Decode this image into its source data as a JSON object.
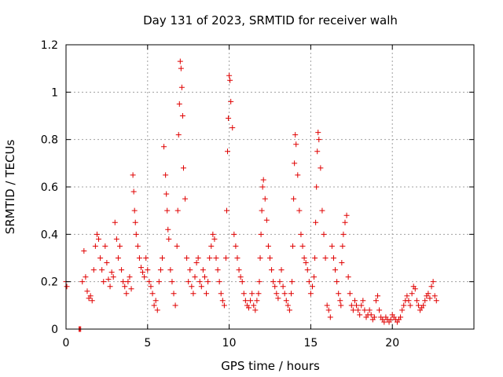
{
  "chart_data": {
    "type": "scatter",
    "title": "Day 131 of 2023, SRMTID for receiver walh",
    "xlabel": "GPS time / hours",
    "ylabel": "SRMTID / TECUs",
    "xlim": [
      0,
      25
    ],
    "ylim": [
      0,
      1.2
    ],
    "xticks": [
      "0",
      "5",
      "10",
      "15",
      "20"
    ],
    "xtick_values": [
      0,
      5,
      10,
      15,
      20
    ],
    "yticks": [
      "0",
      "0.2",
      "0.4",
      "0.6",
      "0.8",
      "1",
      "1.2"
    ],
    "ytick_values": [
      0,
      0.2,
      0.4,
      0.6,
      0.8,
      1.0,
      1.2
    ],
    "grid": true,
    "marker": "+",
    "color": "#e00000",
    "series": [
      {
        "name": "SRMTID",
        "x": [
          0.0,
          0.05,
          0.8,
          0.85,
          0.9,
          1.0,
          1.1,
          1.2,
          1.3,
          1.4,
          1.5,
          1.6,
          1.7,
          1.8,
          1.9,
          2.0,
          2.1,
          2.2,
          2.3,
          2.4,
          2.5,
          2.6,
          2.7,
          2.8,
          2.9,
          3.0,
          3.1,
          3.2,
          3.3,
          3.4,
          3.5,
          3.6,
          3.7,
          3.8,
          3.9,
          4.0,
          4.1,
          4.15,
          4.2,
          4.25,
          4.3,
          4.4,
          4.5,
          4.6,
          4.7,
          4.8,
          4.9,
          5.0,
          5.1,
          5.2,
          5.3,
          5.4,
          5.5,
          5.6,
          5.7,
          5.8,
          5.9,
          6.0,
          6.1,
          6.15,
          6.2,
          6.25,
          6.3,
          6.4,
          6.5,
          6.6,
          6.7,
          6.8,
          6.85,
          6.9,
          6.95,
          7.0,
          7.05,
          7.1,
          7.15,
          7.2,
          7.3,
          7.4,
          7.5,
          7.6,
          7.7,
          7.8,
          7.9,
          8.0,
          8.1,
          8.2,
          8.3,
          8.4,
          8.5,
          8.6,
          8.7,
          8.8,
          8.9,
          9.0,
          9.1,
          9.2,
          9.3,
          9.4,
          9.5,
          9.6,
          9.7,
          9.8,
          9.85,
          9.9,
          9.95,
          10.0,
          10.05,
          10.1,
          10.2,
          10.3,
          10.4,
          10.5,
          10.6,
          10.7,
          10.8,
          10.9,
          11.0,
          11.1,
          11.2,
          11.3,
          11.4,
          11.5,
          11.6,
          11.7,
          11.8,
          11.85,
          11.9,
          11.95,
          12.0,
          12.05,
          12.1,
          12.2,
          12.3,
          12.4,
          12.5,
          12.6,
          12.7,
          12.8,
          12.9,
          13.0,
          13.1,
          13.2,
          13.3,
          13.4,
          13.5,
          13.6,
          13.7,
          13.8,
          13.85,
          13.9,
          13.95,
          14.0,
          14.05,
          14.1,
          14.2,
          14.3,
          14.4,
          14.5,
          14.6,
          14.7,
          14.8,
          14.9,
          15.0,
          15.1,
          15.2,
          15.25,
          15.3,
          15.35,
          15.4,
          15.45,
          15.5,
          15.6,
          15.7,
          15.8,
          15.9,
          16.0,
          16.1,
          16.2,
          16.3,
          16.4,
          16.5,
          16.6,
          16.7,
          16.8,
          16.85,
          16.9,
          16.95,
          17.0,
          17.1,
          17.2,
          17.3,
          17.4,
          17.5,
          17.6,
          17.7,
          17.8,
          17.9,
          18.0,
          18.1,
          18.2,
          18.3,
          18.4,
          18.5,
          18.6,
          18.7,
          18.8,
          18.9,
          19.0,
          19.1,
          19.2,
          19.3,
          19.4,
          19.5,
          19.6,
          19.7,
          19.8,
          19.9,
          20.0,
          20.1,
          20.2,
          20.3,
          20.4,
          20.5,
          20.6,
          20.7,
          20.8,
          20.9,
          21.0,
          21.1,
          21.2,
          21.3,
          21.4,
          21.5,
          21.6,
          21.7,
          21.8,
          21.9,
          22.0,
          22.1,
          22.2,
          22.3,
          22.4,
          22.5,
          22.6,
          22.7
        ],
        "y": [
          0.2,
          0.18,
          0.0,
          0.0,
          0.0,
          0.2,
          0.33,
          0.22,
          0.16,
          0.13,
          0.14,
          0.12,
          0.25,
          0.35,
          0.4,
          0.38,
          0.3,
          0.25,
          0.2,
          0.35,
          0.28,
          0.21,
          0.18,
          0.24,
          0.22,
          0.45,
          0.38,
          0.3,
          0.35,
          0.25,
          0.2,
          0.18,
          0.15,
          0.2,
          0.22,
          0.17,
          0.65,
          0.58,
          0.5,
          0.45,
          0.4,
          0.35,
          0.3,
          0.26,
          0.24,
          0.22,
          0.3,
          0.25,
          0.2,
          0.18,
          0.15,
          0.1,
          0.12,
          0.08,
          0.2,
          0.25,
          0.3,
          0.77,
          0.65,
          0.57,
          0.5,
          0.42,
          0.38,
          0.25,
          0.2,
          0.15,
          0.1,
          0.35,
          0.5,
          0.82,
          0.95,
          1.13,
          1.1,
          1.02,
          0.9,
          0.68,
          0.55,
          0.3,
          0.2,
          0.25,
          0.18,
          0.15,
          0.22,
          0.28,
          0.3,
          0.2,
          0.18,
          0.25,
          0.22,
          0.15,
          0.2,
          0.3,
          0.35,
          0.4,
          0.38,
          0.3,
          0.25,
          0.2,
          0.15,
          0.12,
          0.1,
          0.3,
          0.5,
          0.75,
          0.89,
          1.07,
          1.05,
          0.96,
          0.85,
          0.4,
          0.35,
          0.3,
          0.25,
          0.22,
          0.2,
          0.15,
          0.12,
          0.1,
          0.09,
          0.12,
          0.15,
          0.1,
          0.08,
          0.12,
          0.15,
          0.2,
          0.3,
          0.4,
          0.5,
          0.6,
          0.63,
          0.55,
          0.46,
          0.35,
          0.3,
          0.25,
          0.2,
          0.18,
          0.15,
          0.13,
          0.2,
          0.25,
          0.18,
          0.15,
          0.12,
          0.1,
          0.08,
          0.15,
          0.2,
          0.35,
          0.55,
          0.7,
          0.82,
          0.78,
          0.65,
          0.5,
          0.4,
          0.35,
          0.3,
          0.28,
          0.25,
          0.2,
          0.15,
          0.18,
          0.22,
          0.3,
          0.45,
          0.6,
          0.75,
          0.83,
          0.8,
          0.68,
          0.5,
          0.4,
          0.3,
          0.1,
          0.08,
          0.05,
          0.35,
          0.3,
          0.25,
          0.2,
          0.15,
          0.12,
          0.1,
          0.28,
          0.35,
          0.4,
          0.45,
          0.48,
          0.22,
          0.15,
          0.1,
          0.08,
          0.12,
          0.1,
          0.08,
          0.06,
          0.1,
          0.12,
          0.08,
          0.05,
          0.06,
          0.08,
          0.06,
          0.04,
          0.05,
          0.12,
          0.14,
          0.08,
          0.05,
          0.04,
          0.03,
          0.05,
          0.04,
          0.03,
          0.04,
          0.06,
          0.05,
          0.04,
          0.03,
          0.04,
          0.05,
          0.08,
          0.1,
          0.12,
          0.14,
          0.12,
          0.1,
          0.15,
          0.18,
          0.17,
          0.12,
          0.1,
          0.08,
          0.09,
          0.1,
          0.12,
          0.14,
          0.15,
          0.13,
          0.18,
          0.2,
          0.14,
          0.12
        ]
      }
    ]
  }
}
